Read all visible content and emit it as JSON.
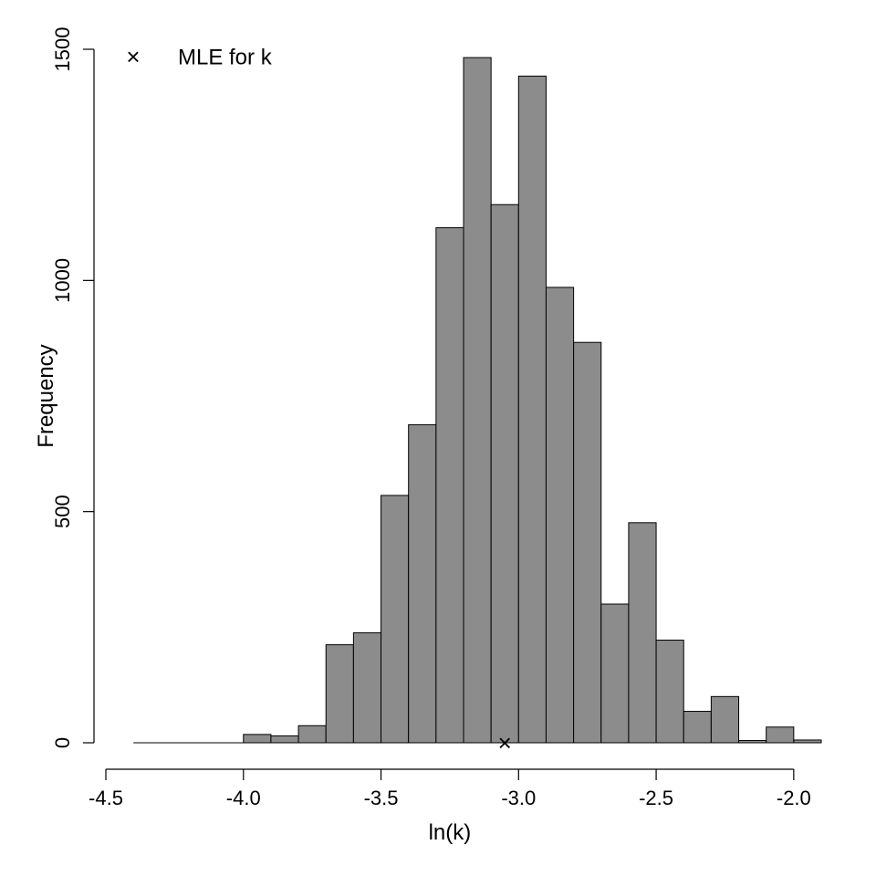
{
  "chart_data": {
    "type": "bar",
    "xlabel": "ln(k)",
    "ylabel": "Frequency",
    "xlim": [
      -4.5,
      -1.9
    ],
    "ylim": [
      0,
      1500
    ],
    "x_ticks": [
      "-4.5",
      "-4.0",
      "-3.5",
      "-3.0",
      "-2.5",
      "-2.0"
    ],
    "y_ticks": [
      "0",
      "500",
      "1000",
      "1500"
    ],
    "bin_width": 0.1,
    "bins": [
      {
        "start": -4.4,
        "end": -4.3,
        "count": 0
      },
      {
        "start": -4.3,
        "end": -4.2,
        "count": 0
      },
      {
        "start": -4.2,
        "end": -4.1,
        "count": 0
      },
      {
        "start": -4.1,
        "end": -4.0,
        "count": 0
      },
      {
        "start": -4.0,
        "end": -3.9,
        "count": 18
      },
      {
        "start": -3.9,
        "end": -3.8,
        "count": 15
      },
      {
        "start": -3.8,
        "end": -3.7,
        "count": 37
      },
      {
        "start": -3.7,
        "end": -3.6,
        "count": 212
      },
      {
        "start": -3.6,
        "end": -3.5,
        "count": 238
      },
      {
        "start": -3.5,
        "end": -3.4,
        "count": 535
      },
      {
        "start": -3.4,
        "end": -3.3,
        "count": 688
      },
      {
        "start": -3.3,
        "end": -3.2,
        "count": 1114
      },
      {
        "start": -3.2,
        "end": -3.1,
        "count": 1482
      },
      {
        "start": -3.1,
        "end": -3.0,
        "count": 1164
      },
      {
        "start": -3.0,
        "end": -2.9,
        "count": 1442
      },
      {
        "start": -2.9,
        "end": -2.8,
        "count": 985
      },
      {
        "start": -2.8,
        "end": -2.7,
        "count": 866
      },
      {
        "start": -2.7,
        "end": -2.6,
        "count": 300
      },
      {
        "start": -2.6,
        "end": -2.5,
        "count": 476
      },
      {
        "start": -2.5,
        "end": -2.4,
        "count": 222
      },
      {
        "start": -2.4,
        "end": -2.3,
        "count": 68
      },
      {
        "start": -2.3,
        "end": -2.2,
        "count": 100
      },
      {
        "start": -2.2,
        "end": -2.1,
        "count": 5
      },
      {
        "start": -2.1,
        "end": -2.0,
        "count": 34
      },
      {
        "start": -2.0,
        "end": -1.9,
        "count": 6
      }
    ],
    "mle": {
      "x": -3.05,
      "y": 0
    },
    "legend": {
      "marker": "×",
      "label": "MLE for k",
      "position": "top-left"
    },
    "bar_fill": "#8c8c8c",
    "bar_stroke": "#000000",
    "grid": false
  }
}
